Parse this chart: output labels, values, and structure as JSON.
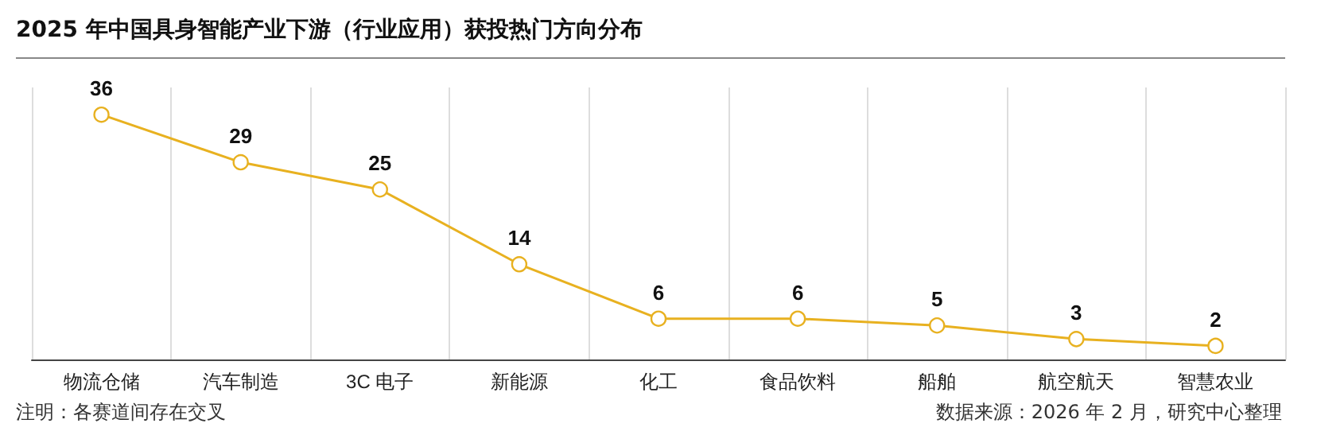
{
  "chart_data": {
    "type": "line",
    "title": "2025 年中国具身智能产业下游（行业应用）获投热门方向分布",
    "categories": [
      "物流仓储",
      "汽车制造",
      "3C 电子",
      "新能源",
      "化工",
      "食品饮料",
      "船舶",
      "航空航天",
      "智慧农业"
    ],
    "series": [
      {
        "color": "#e8b120",
        "values": [
          36,
          29,
          25,
          14,
          6,
          6,
          5,
          3,
          2
        ]
      }
    ],
    "data_labels": true,
    "marker": "circle",
    "grid": "x",
    "tick_labels": "x",
    "annotations": [
      "注明：各赛道间存在交叉",
      "数据来源：2026 年 2 月，研究中心整理"
    ]
  }
}
